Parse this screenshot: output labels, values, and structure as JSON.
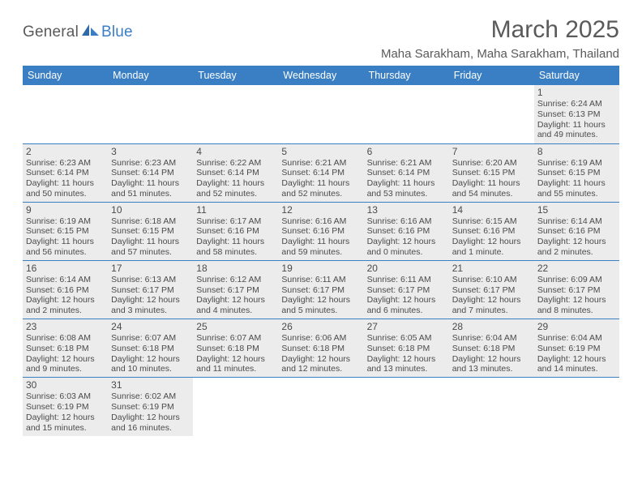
{
  "logo": {
    "general": "General",
    "blue": "Blue"
  },
  "header": {
    "month_title": "March 2025",
    "location": "Maha Sarakham, Maha Sarakham, Thailand"
  },
  "colors": {
    "accent": "#3a7fc4",
    "text": "#5a5a5a",
    "cell_text": "#4b4b4b",
    "shaded_bg": "#ececec",
    "border": "#3a7fc4"
  },
  "weekdays": [
    "Sunday",
    "Monday",
    "Tuesday",
    "Wednesday",
    "Thursday",
    "Friday",
    "Saturday"
  ],
  "cells": [
    {
      "day": "",
      "shaded": false,
      "lines": []
    },
    {
      "day": "",
      "shaded": false,
      "lines": []
    },
    {
      "day": "",
      "shaded": false,
      "lines": []
    },
    {
      "day": "",
      "shaded": false,
      "lines": []
    },
    {
      "day": "",
      "shaded": false,
      "lines": []
    },
    {
      "day": "",
      "shaded": false,
      "lines": []
    },
    {
      "day": "1",
      "shaded": true,
      "lines": [
        "Sunrise: 6:24 AM",
        "Sunset: 6:13 PM",
        "Daylight: 11 hours",
        "and 49 minutes."
      ]
    },
    {
      "day": "2",
      "shaded": true,
      "lines": [
        "Sunrise: 6:23 AM",
        "Sunset: 6:14 PM",
        "Daylight: 11 hours",
        "and 50 minutes."
      ]
    },
    {
      "day": "3",
      "shaded": true,
      "lines": [
        "Sunrise: 6:23 AM",
        "Sunset: 6:14 PM",
        "Daylight: 11 hours",
        "and 51 minutes."
      ]
    },
    {
      "day": "4",
      "shaded": true,
      "lines": [
        "Sunrise: 6:22 AM",
        "Sunset: 6:14 PM",
        "Daylight: 11 hours",
        "and 52 minutes."
      ]
    },
    {
      "day": "5",
      "shaded": true,
      "lines": [
        "Sunrise: 6:21 AM",
        "Sunset: 6:14 PM",
        "Daylight: 11 hours",
        "and 52 minutes."
      ]
    },
    {
      "day": "6",
      "shaded": true,
      "lines": [
        "Sunrise: 6:21 AM",
        "Sunset: 6:14 PM",
        "Daylight: 11 hours",
        "and 53 minutes."
      ]
    },
    {
      "day": "7",
      "shaded": true,
      "lines": [
        "Sunrise: 6:20 AM",
        "Sunset: 6:15 PM",
        "Daylight: 11 hours",
        "and 54 minutes."
      ]
    },
    {
      "day": "8",
      "shaded": true,
      "lines": [
        "Sunrise: 6:19 AM",
        "Sunset: 6:15 PM",
        "Daylight: 11 hours",
        "and 55 minutes."
      ]
    },
    {
      "day": "9",
      "shaded": true,
      "lines": [
        "Sunrise: 6:19 AM",
        "Sunset: 6:15 PM",
        "Daylight: 11 hours",
        "and 56 minutes."
      ]
    },
    {
      "day": "10",
      "shaded": true,
      "lines": [
        "Sunrise: 6:18 AM",
        "Sunset: 6:15 PM",
        "Daylight: 11 hours",
        "and 57 minutes."
      ]
    },
    {
      "day": "11",
      "shaded": true,
      "lines": [
        "Sunrise: 6:17 AM",
        "Sunset: 6:16 PM",
        "Daylight: 11 hours",
        "and 58 minutes."
      ]
    },
    {
      "day": "12",
      "shaded": true,
      "lines": [
        "Sunrise: 6:16 AM",
        "Sunset: 6:16 PM",
        "Daylight: 11 hours",
        "and 59 minutes."
      ]
    },
    {
      "day": "13",
      "shaded": true,
      "lines": [
        "Sunrise: 6:16 AM",
        "Sunset: 6:16 PM",
        "Daylight: 12 hours",
        "and 0 minutes."
      ]
    },
    {
      "day": "14",
      "shaded": true,
      "lines": [
        "Sunrise: 6:15 AM",
        "Sunset: 6:16 PM",
        "Daylight: 12 hours",
        "and 1 minute."
      ]
    },
    {
      "day": "15",
      "shaded": true,
      "lines": [
        "Sunrise: 6:14 AM",
        "Sunset: 6:16 PM",
        "Daylight: 12 hours",
        "and 2 minutes."
      ]
    },
    {
      "day": "16",
      "shaded": true,
      "lines": [
        "Sunrise: 6:14 AM",
        "Sunset: 6:16 PM",
        "Daylight: 12 hours",
        "and 2 minutes."
      ]
    },
    {
      "day": "17",
      "shaded": true,
      "lines": [
        "Sunrise: 6:13 AM",
        "Sunset: 6:17 PM",
        "Daylight: 12 hours",
        "and 3 minutes."
      ]
    },
    {
      "day": "18",
      "shaded": true,
      "lines": [
        "Sunrise: 6:12 AM",
        "Sunset: 6:17 PM",
        "Daylight: 12 hours",
        "and 4 minutes."
      ]
    },
    {
      "day": "19",
      "shaded": true,
      "lines": [
        "Sunrise: 6:11 AM",
        "Sunset: 6:17 PM",
        "Daylight: 12 hours",
        "and 5 minutes."
      ]
    },
    {
      "day": "20",
      "shaded": true,
      "lines": [
        "Sunrise: 6:11 AM",
        "Sunset: 6:17 PM",
        "Daylight: 12 hours",
        "and 6 minutes."
      ]
    },
    {
      "day": "21",
      "shaded": true,
      "lines": [
        "Sunrise: 6:10 AM",
        "Sunset: 6:17 PM",
        "Daylight: 12 hours",
        "and 7 minutes."
      ]
    },
    {
      "day": "22",
      "shaded": true,
      "lines": [
        "Sunrise: 6:09 AM",
        "Sunset: 6:17 PM",
        "Daylight: 12 hours",
        "and 8 minutes."
      ]
    },
    {
      "day": "23",
      "shaded": true,
      "lines": [
        "Sunrise: 6:08 AM",
        "Sunset: 6:18 PM",
        "Daylight: 12 hours",
        "and 9 minutes."
      ]
    },
    {
      "day": "24",
      "shaded": true,
      "lines": [
        "Sunrise: 6:07 AM",
        "Sunset: 6:18 PM",
        "Daylight: 12 hours",
        "and 10 minutes."
      ]
    },
    {
      "day": "25",
      "shaded": true,
      "lines": [
        "Sunrise: 6:07 AM",
        "Sunset: 6:18 PM",
        "Daylight: 12 hours",
        "and 11 minutes."
      ]
    },
    {
      "day": "26",
      "shaded": true,
      "lines": [
        "Sunrise: 6:06 AM",
        "Sunset: 6:18 PM",
        "Daylight: 12 hours",
        "and 12 minutes."
      ]
    },
    {
      "day": "27",
      "shaded": true,
      "lines": [
        "Sunrise: 6:05 AM",
        "Sunset: 6:18 PM",
        "Daylight: 12 hours",
        "and 13 minutes."
      ]
    },
    {
      "day": "28",
      "shaded": true,
      "lines": [
        "Sunrise: 6:04 AM",
        "Sunset: 6:18 PM",
        "Daylight: 12 hours",
        "and 13 minutes."
      ]
    },
    {
      "day": "29",
      "shaded": true,
      "lines": [
        "Sunrise: 6:04 AM",
        "Sunset: 6:19 PM",
        "Daylight: 12 hours",
        "and 14 minutes."
      ]
    },
    {
      "day": "30",
      "shaded": true,
      "lines": [
        "Sunrise: 6:03 AM",
        "Sunset: 6:19 PM",
        "Daylight: 12 hours",
        "and 15 minutes."
      ]
    },
    {
      "day": "31",
      "shaded": true,
      "lines": [
        "Sunrise: 6:02 AM",
        "Sunset: 6:19 PM",
        "Daylight: 12 hours",
        "and 16 minutes."
      ]
    },
    {
      "day": "",
      "shaded": false,
      "lines": []
    },
    {
      "day": "",
      "shaded": false,
      "lines": []
    },
    {
      "day": "",
      "shaded": false,
      "lines": []
    },
    {
      "day": "",
      "shaded": false,
      "lines": []
    },
    {
      "day": "",
      "shaded": false,
      "lines": []
    }
  ]
}
